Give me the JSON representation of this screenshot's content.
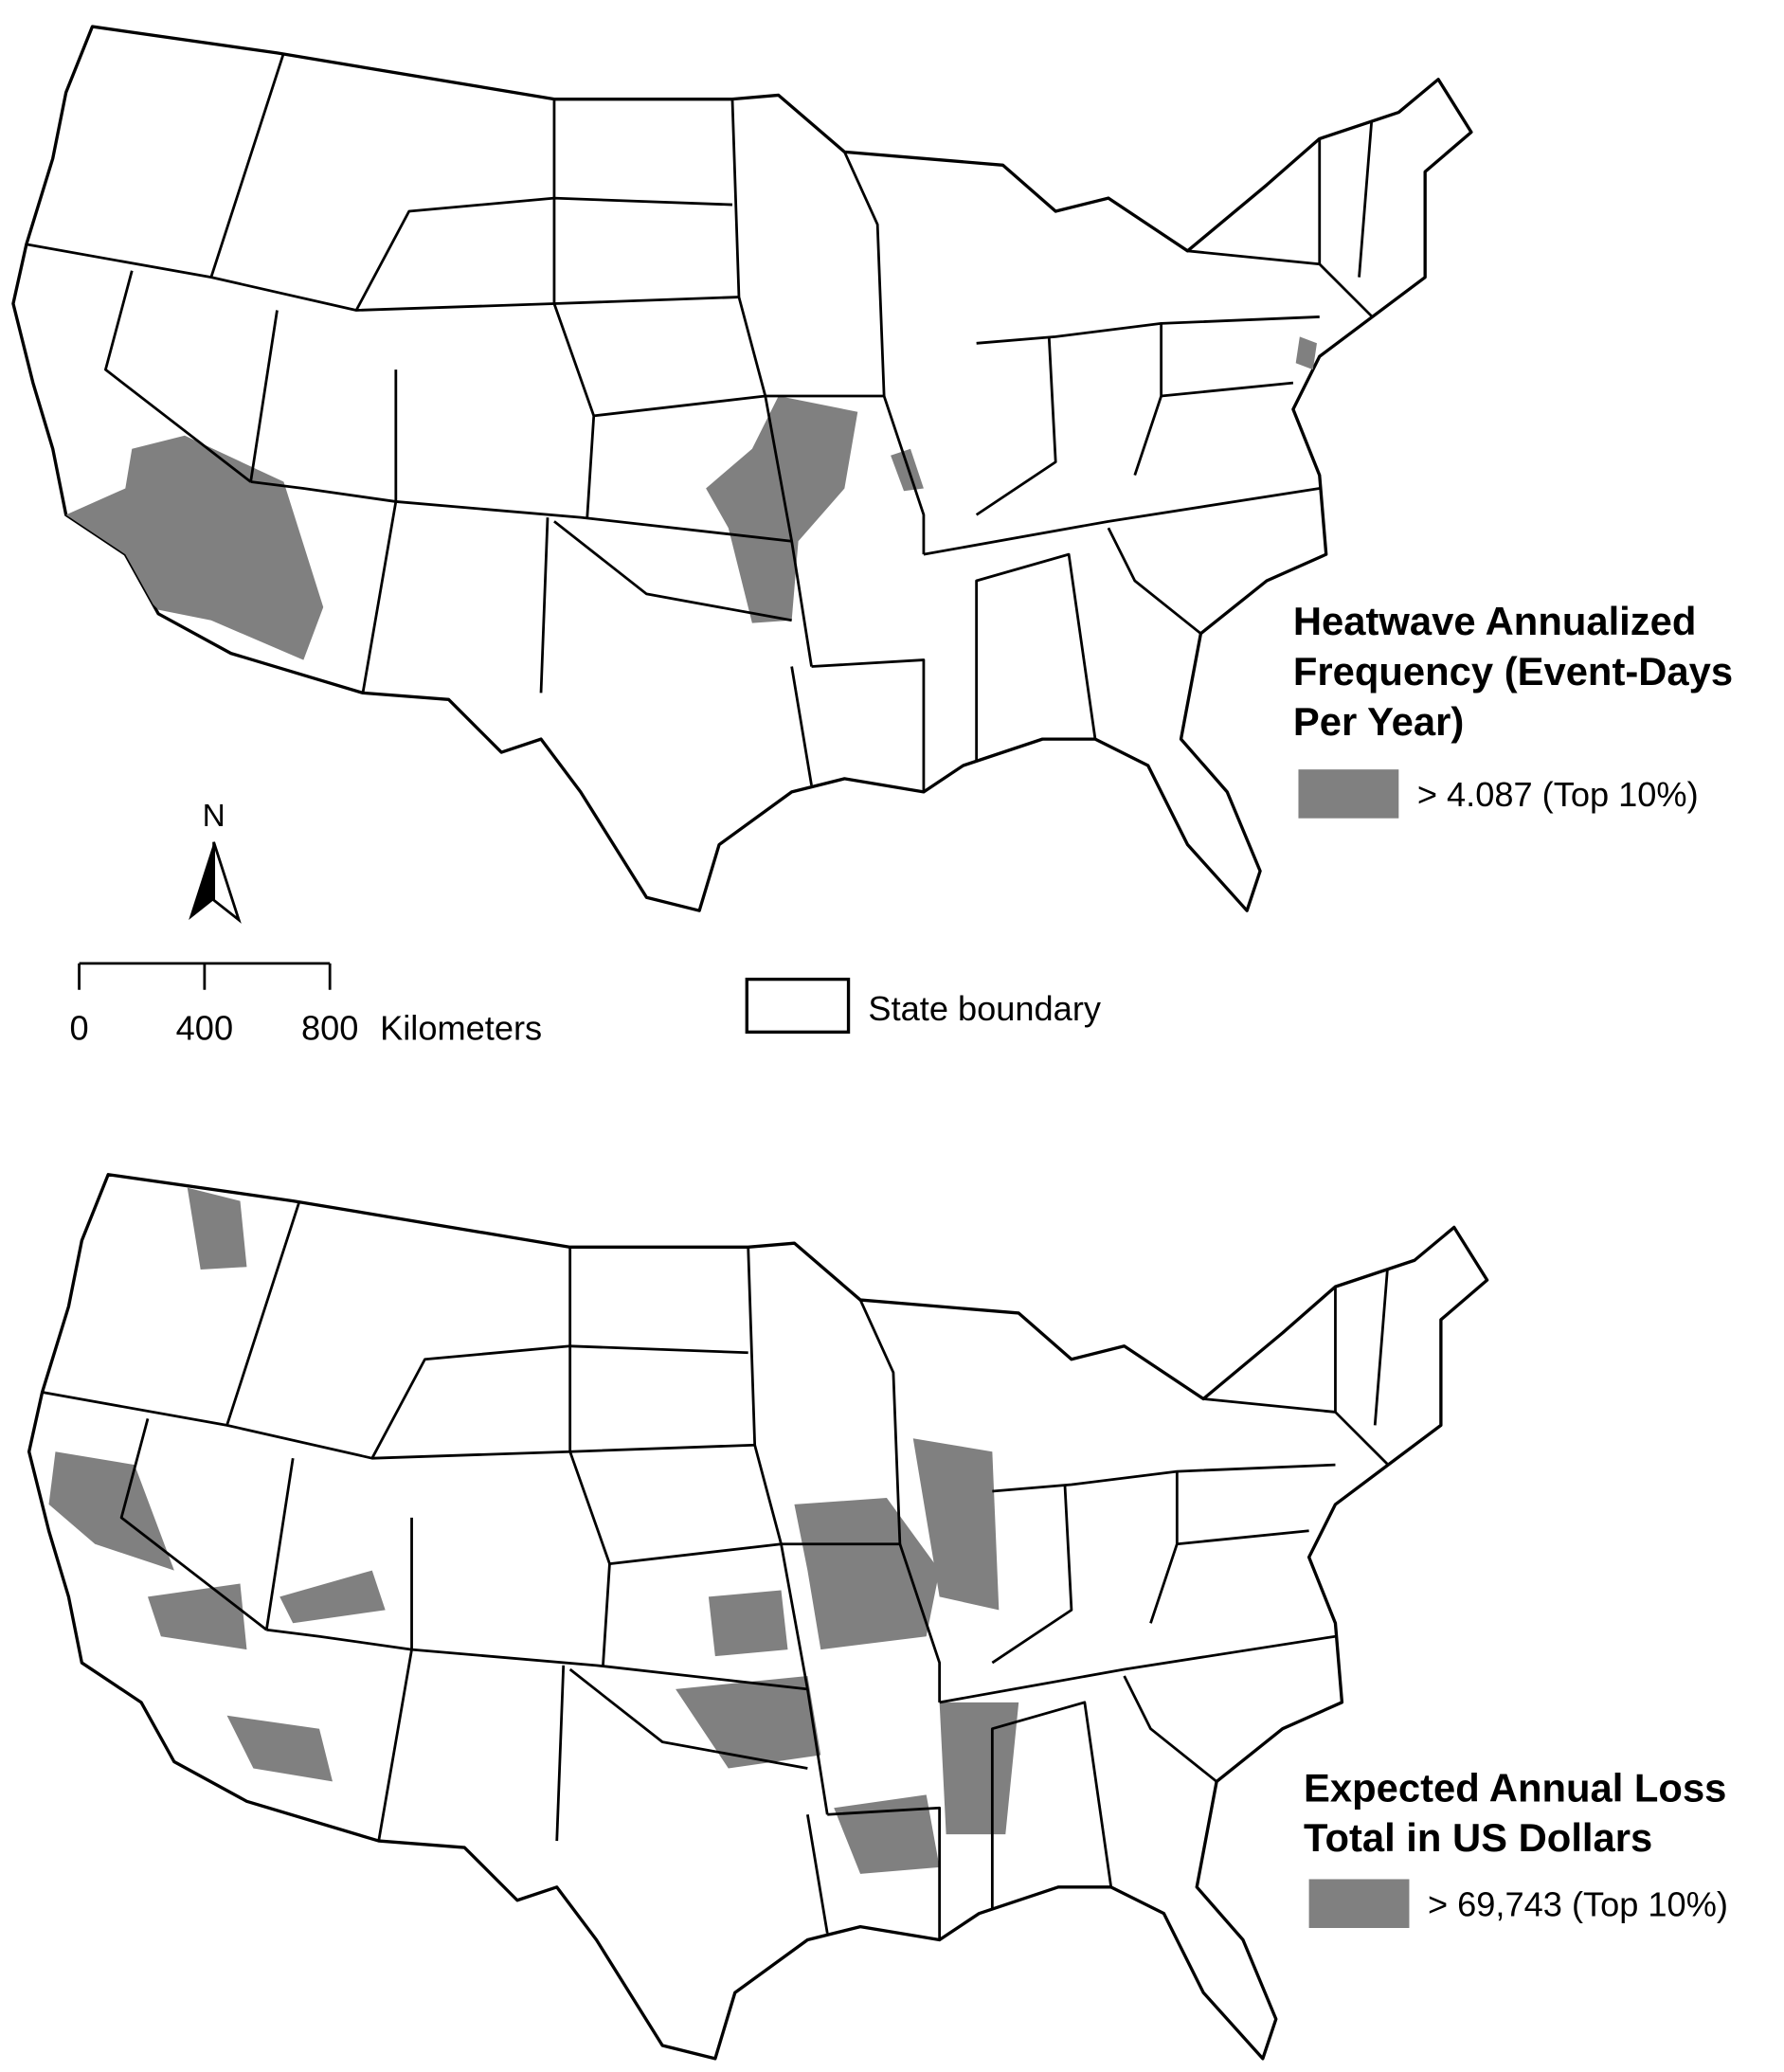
{
  "maps": [
    {
      "legend": {
        "title_lines": [
          "Heatwave Annualized",
          "Frequency (Event-Days",
          "Per Year)"
        ],
        "item": "> 4.087 (Top 10%)"
      }
    },
    {
      "legend": {
        "title_lines": [
          "Expected Annual Loss",
          "Total in US Dollars"
        ],
        "item": "> 69,743 (Top 10%)"
      }
    }
  ],
  "north_arrow": "N",
  "scale_bar": {
    "ticks": [
      0,
      400,
      800
    ],
    "unit": "Kilometers"
  },
  "boundary_legend": "State boundary"
}
